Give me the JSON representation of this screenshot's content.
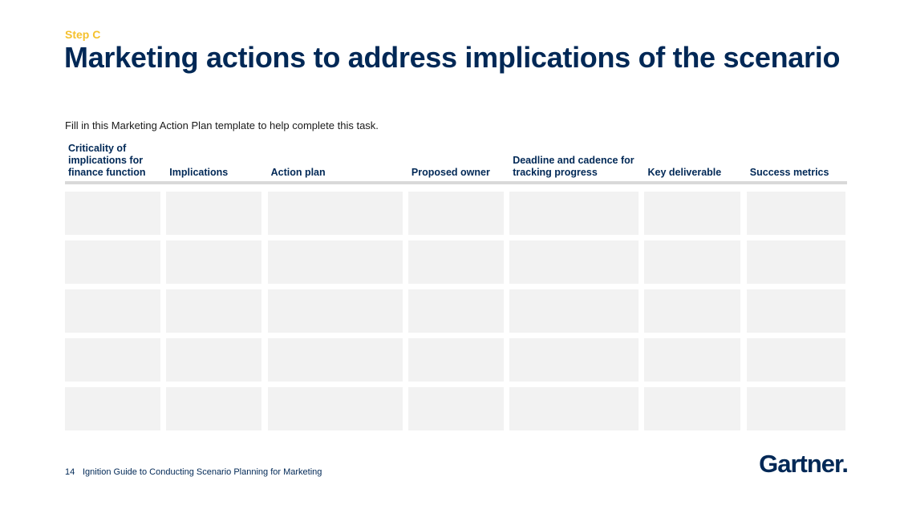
{
  "step": "Step C",
  "title": "Marketing actions to address implications of the scenario",
  "subtitle": "Fill in this Marketing Action Plan template to help complete this task.",
  "table": {
    "headers": [
      "Criticality of implications for finance function",
      "Implications",
      "Action plan",
      "Proposed owner",
      "Deadline and cadence for tracking progress",
      "Key deliverable",
      "Success metrics"
    ],
    "rows": [
      [
        "",
        "",
        "",
        "",
        "",
        "",
        ""
      ],
      [
        "",
        "",
        "",
        "",
        "",
        "",
        ""
      ],
      [
        "",
        "",
        "",
        "",
        "",
        "",
        ""
      ],
      [
        "",
        "",
        "",
        "",
        "",
        "",
        ""
      ],
      [
        "",
        "",
        "",
        "",
        "",
        "",
        ""
      ]
    ]
  },
  "footer": {
    "page_number": "14",
    "document_title": "Ignition Guide to Conducting Scenario Planning for Marketing"
  },
  "logo": {
    "text": "Gartner",
    "mark": "."
  },
  "colors": {
    "navy": "#002856",
    "accent": "#f5c12e",
    "cell_fill": "#f2f2f2",
    "rule": "#d9d9d9"
  }
}
